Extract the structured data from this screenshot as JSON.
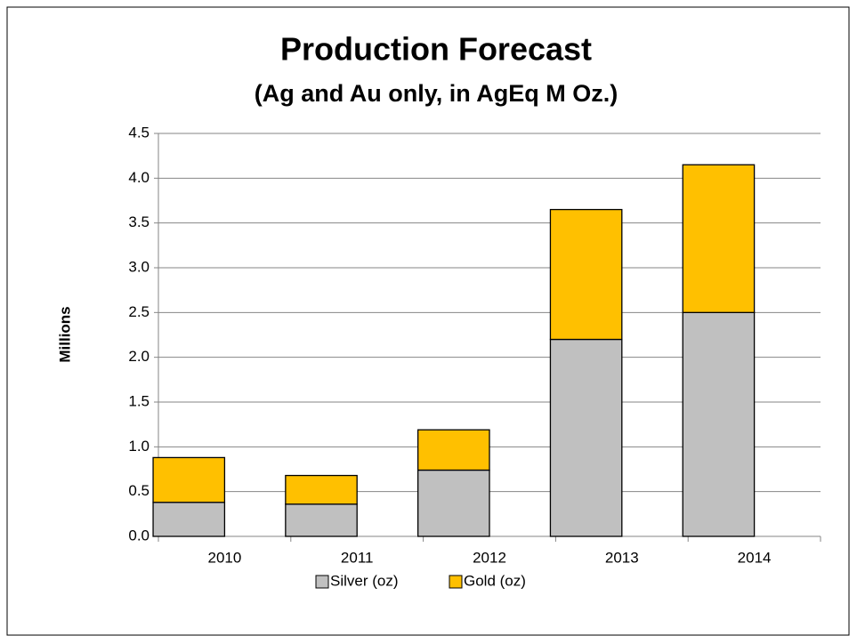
{
  "chart_data": {
    "type": "stacked_bar",
    "title": "Production Forecast",
    "subtitle": "(Ag and Au only, in AgEq M Oz.)",
    "y_label": "Millions",
    "categories": [
      "2010",
      "2011",
      "2012",
      "2013",
      "2014"
    ],
    "series": [
      {
        "name": "Silver (oz)",
        "color": "#c0c0c0",
        "values": [
          0.38,
          0.36,
          0.74,
          2.2,
          2.5
        ]
      },
      {
        "name": "Gold (oz)",
        "color": "#ffc000",
        "values": [
          0.5,
          0.32,
          0.45,
          1.45,
          1.65
        ]
      }
    ],
    "ylim": [
      0,
      4.5
    ],
    "yticks": [
      {
        "value": 0,
        "label": "0.0"
      },
      0.5,
      {
        "value": 1,
        "label": "1.0"
      },
      1.5,
      {
        "value": 2,
        "label": "2.0"
      },
      2.5,
      {
        "value": 3,
        "label": "3.0"
      },
      3.5,
      {
        "value": 4,
        "label": "4.0"
      },
      4.5
    ],
    "grid": true,
    "legend": "bottom"
  }
}
